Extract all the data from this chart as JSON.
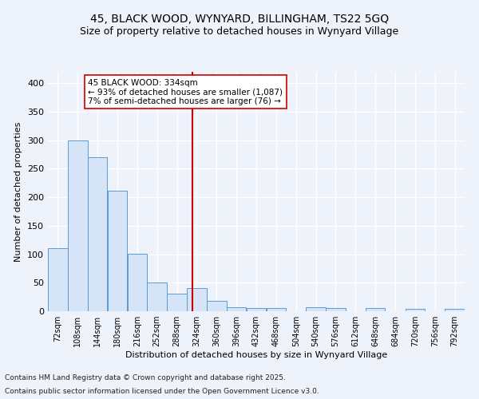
{
  "title1": "45, BLACK WOOD, WYNYARD, BILLINGHAM, TS22 5GQ",
  "title2": "Size of property relative to detached houses in Wynyard Village",
  "xlabel": "Distribution of detached houses by size in Wynyard Village",
  "ylabel": "Number of detached properties",
  "footnote1": "Contains HM Land Registry data © Crown copyright and database right 2025.",
  "footnote2": "Contains public sector information licensed under the Open Government Licence v3.0.",
  "annotation_line1": "45 BLACK WOOD: 334sqm",
  "annotation_line2": "← 93% of detached houses are smaller (1,087)",
  "annotation_line3": "7% of semi-detached houses are larger (76) →",
  "bar_color": "#d6e4f7",
  "bar_edge_color": "#5b9bd5",
  "vline_color": "#cc0000",
  "vline_x": 334,
  "categories": [
    72,
    108,
    144,
    180,
    216,
    252,
    288,
    324,
    360,
    396,
    432,
    468,
    504,
    540,
    576,
    612,
    648,
    684,
    720,
    756,
    792
  ],
  "bin_width": 36,
  "values": [
    110,
    300,
    270,
    212,
    101,
    51,
    31,
    41,
    18,
    7,
    6,
    6,
    0,
    7,
    5,
    0,
    5,
    0,
    4,
    0,
    4
  ],
  "ylim": [
    0,
    420
  ],
  "yticks": [
    0,
    50,
    100,
    150,
    200,
    250,
    300,
    350,
    400
  ],
  "bg_color": "#eef2fb",
  "grid_color": "#ffffff",
  "title1_fontsize": 10,
  "title2_fontsize": 9,
  "xlabel_fontsize": 8,
  "ylabel_fontsize": 8,
  "tick_fontsize": 8,
  "xtick_fontsize": 7
}
